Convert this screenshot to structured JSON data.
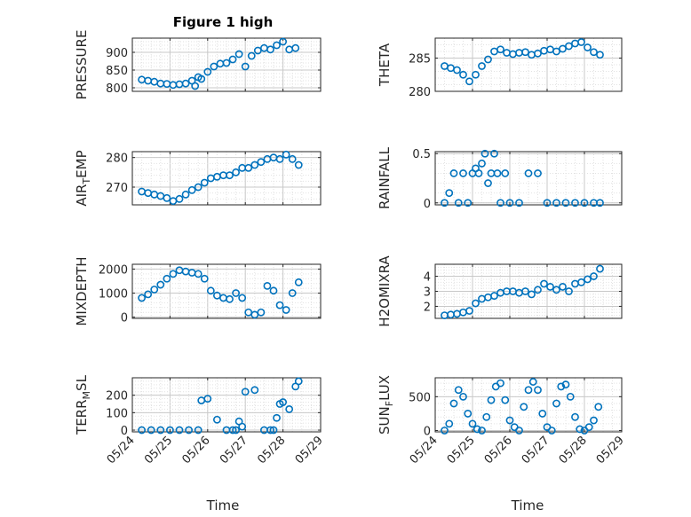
{
  "figure": {
    "title": "Figure 1 high",
    "xlabel": "Time",
    "marker_color": "#0072BD",
    "date_ticks": [
      "05/24",
      "05/25",
      "05/26",
      "05/27",
      "05/28",
      "05/29"
    ]
  },
  "chart_data": [
    {
      "type": "scatter",
      "ylabel": "PRESSURE",
      "ylim": [
        790,
        940
      ],
      "yticks": [
        800,
        850,
        900
      ],
      "grid": true,
      "x": [
        "05/24 06:00",
        "05/24 10:00",
        "05/24 14:00",
        "05/24 18:00",
        "05/24 22:00",
        "05/25 02:00",
        "05/25 06:00",
        "05/25 10:00",
        "05/25 14:00",
        "05/25 16:00",
        "05/25 18:00",
        "05/25 20:00",
        "05/26 00:00",
        "05/26 04:00",
        "05/26 08:00",
        "05/26 12:00",
        "05/26 16:00",
        "05/26 20:00",
        "05/27 00:00",
        "05/27 04:00",
        "05/27 08:00",
        "05/27 12:00",
        "05/27 16:00",
        "05/27 20:00",
        "05/28 00:00",
        "05/28 04:00",
        "05/28 08:00"
      ],
      "values": [
        823,
        820,
        817,
        812,
        811,
        808,
        810,
        812,
        820,
        805,
        830,
        825,
        845,
        860,
        868,
        870,
        880,
        895,
        860,
        890,
        905,
        912,
        908,
        920,
        930,
        908,
        912
      ]
    },
    {
      "type": "scatter",
      "ylabel": "THETA",
      "ylim": [
        280,
        288
      ],
      "yticks": [
        280,
        285
      ],
      "grid": true,
      "x": [
        "05/24 06:00",
        "05/24 10:00",
        "05/24 14:00",
        "05/24 18:00",
        "05/24 22:00",
        "05/25 02:00",
        "05/25 06:00",
        "05/25 10:00",
        "05/25 14:00",
        "05/25 18:00",
        "05/25 22:00",
        "05/26 02:00",
        "05/26 06:00",
        "05/26 10:00",
        "05/26 14:00",
        "05/26 18:00",
        "05/26 22:00",
        "05/27 02:00",
        "05/27 06:00",
        "05/27 10:00",
        "05/27 14:00",
        "05/27 18:00",
        "05/27 22:00",
        "05/28 02:00",
        "05/28 06:00",
        "05/28 10:00"
      ],
      "values": [
        283.8,
        283.5,
        283.2,
        282.5,
        281.5,
        282.5,
        283.8,
        284.8,
        286.0,
        286.3,
        285.8,
        285.6,
        285.8,
        285.9,
        285.5,
        285.7,
        286.1,
        286.3,
        286.0,
        286.4,
        286.8,
        287.2,
        287.4,
        286.6,
        285.9,
        285.5
      ]
    },
    {
      "type": "scatter",
      "ylabel": "AIR_TEMP",
      "ylim": [
        264,
        282
      ],
      "yticks": [
        270,
        280
      ],
      "grid": true,
      "x": [
        "05/24 06:00",
        "05/24 10:00",
        "05/24 14:00",
        "05/24 18:00",
        "05/24 22:00",
        "05/25 02:00",
        "05/25 06:00",
        "05/25 10:00",
        "05/25 14:00",
        "05/25 18:00",
        "05/25 22:00",
        "05/26 02:00",
        "05/26 06:00",
        "05/26 10:00",
        "05/26 14:00",
        "05/26 18:00",
        "05/26 22:00",
        "05/27 02:00",
        "05/27 06:00",
        "05/27 10:00",
        "05/27 14:00",
        "05/27 18:00",
        "05/27 22:00",
        "05/28 02:00",
        "05/28 06:00",
        "05/28 10:00"
      ],
      "values": [
        268.5,
        268,
        267.5,
        267,
        266.3,
        265.3,
        266,
        267.5,
        269,
        270,
        271.5,
        273,
        273.5,
        274,
        274,
        275,
        276.5,
        276.5,
        277.5,
        278.5,
        279.5,
        280,
        279.5,
        281,
        279.5,
        277.5
      ]
    },
    {
      "type": "scatter",
      "ylabel": "RAINFALL",
      "ylim": [
        -0.02,
        0.52
      ],
      "yticks": [
        0,
        0.5
      ],
      "grid": true,
      "x": [
        "05/24 06:00",
        "05/24 09:00",
        "05/24 12:00",
        "05/24 15:00",
        "05/24 18:00",
        "05/24 21:00",
        "05/25 00:00",
        "05/25 02:00",
        "05/25 04:00",
        "05/25 06:00",
        "05/25 08:00",
        "05/25 10:00",
        "05/25 12:00",
        "05/25 14:00",
        "05/25 16:00",
        "05/25 18:00",
        "05/25 21:00",
        "05/26 00:00",
        "05/26 06:00",
        "05/26 12:00",
        "05/26 18:00",
        "05/27 00:00",
        "05/27 06:00",
        "05/27 12:00",
        "05/27 18:00",
        "05/28 00:00",
        "05/28 06:00",
        "05/28 10:00"
      ],
      "values": [
        0,
        0.1,
        0.3,
        0,
        0.3,
        0,
        0.3,
        0.35,
        0.3,
        0.4,
        0.5,
        0.2,
        0.3,
        0.5,
        0.3,
        0,
        0.3,
        0,
        0,
        0.3,
        0.3,
        0,
        0,
        0,
        0,
        0,
        0,
        0
      ]
    },
    {
      "type": "scatter",
      "ylabel": "MIXDEPTH",
      "ylim": [
        -50,
        2200
      ],
      "yticks": [
        0,
        1000,
        2000
      ],
      "grid": true,
      "x": [
        "05/24 06:00",
        "05/24 10:00",
        "05/24 14:00",
        "05/24 18:00",
        "05/24 22:00",
        "05/25 02:00",
        "05/25 06:00",
        "05/25 10:00",
        "05/25 14:00",
        "05/25 18:00",
        "05/25 22:00",
        "05/26 02:00",
        "05/26 06:00",
        "05/26 10:00",
        "05/26 14:00",
        "05/26 18:00",
        "05/26 22:00",
        "05/27 02:00",
        "05/27 06:00",
        "05/27 10:00",
        "05/27 14:00",
        "05/27 18:00",
        "05/27 22:00",
        "05/28 02:00",
        "05/28 06:00",
        "05/28 10:00"
      ],
      "values": [
        800,
        950,
        1150,
        1350,
        1600,
        1800,
        1950,
        1900,
        1850,
        1800,
        1600,
        1100,
        900,
        800,
        750,
        1000,
        800,
        200,
        100,
        200,
        1300,
        1100,
        500,
        300,
        1000,
        1450
      ]
    },
    {
      "type": "scatter",
      "ylabel": "H2OMIXRA",
      "ylim": [
        1.2,
        4.8
      ],
      "yticks": [
        2,
        3,
        4
      ],
      "grid": true,
      "x": [
        "05/24 06:00",
        "05/24 10:00",
        "05/24 14:00",
        "05/24 18:00",
        "05/24 22:00",
        "05/25 02:00",
        "05/25 06:00",
        "05/25 10:00",
        "05/25 14:00",
        "05/25 18:00",
        "05/25 22:00",
        "05/26 02:00",
        "05/26 06:00",
        "05/26 10:00",
        "05/26 14:00",
        "05/26 18:00",
        "05/26 22:00",
        "05/27 02:00",
        "05/27 06:00",
        "05/27 10:00",
        "05/27 14:00",
        "05/27 18:00",
        "05/27 22:00",
        "05/28 02:00",
        "05/28 06:00",
        "05/28 10:00"
      ],
      "values": [
        1.4,
        1.45,
        1.5,
        1.6,
        1.7,
        2.2,
        2.5,
        2.6,
        2.7,
        2.9,
        3.0,
        3.0,
        2.9,
        3.0,
        2.8,
        3.1,
        3.5,
        3.3,
        3.1,
        3.3,
        3.0,
        3.5,
        3.6,
        3.8,
        4.0,
        4.5
      ]
    },
    {
      "type": "scatter",
      "ylabel": "TERR_MSL",
      "ylim": [
        -10,
        300
      ],
      "yticks": [
        0,
        100,
        200
      ],
      "grid": true,
      "x": [
        "05/24 06:00",
        "05/24 12:00",
        "05/24 18:00",
        "05/25 00:00",
        "05/25 06:00",
        "05/25 12:00",
        "05/25 18:00",
        "05/25 20:00",
        "05/26 00:00",
        "05/26 06:00",
        "05/26 12:00",
        "05/26 16:00",
        "05/26 18:00",
        "05/26 20:00",
        "05/26 22:00",
        "05/27 00:00",
        "05/27 06:00",
        "05/27 12:00",
        "05/27 16:00",
        "05/27 18:00",
        "05/27 20:00",
        "05/27 22:00",
        "05/28 00:00",
        "05/28 04:00",
        "05/28 08:00",
        "05/28 10:00"
      ],
      "values": [
        0,
        0,
        0,
        0,
        0,
        0,
        0,
        170,
        180,
        60,
        0,
        0,
        0,
        50,
        20,
        220,
        230,
        0,
        0,
        0,
        70,
        150,
        160,
        120,
        250,
        280
      ]
    },
    {
      "type": "scatter",
      "ylabel": "SUN_FLUX",
      "ylim": [
        -20,
        780
      ],
      "yticks": [
        0,
        500
      ],
      "grid": true,
      "x": [
        "05/24 06:00",
        "05/24 09:00",
        "05/24 12:00",
        "05/24 15:00",
        "05/24 18:00",
        "05/24 21:00",
        "05/25 00:00",
        "05/25 03:00",
        "05/25 06:00",
        "05/25 09:00",
        "05/25 12:00",
        "05/25 15:00",
        "05/25 18:00",
        "05/25 21:00",
        "05/26 00:00",
        "05/26 03:00",
        "05/26 06:00",
        "05/26 09:00",
        "05/26 12:00",
        "05/26 15:00",
        "05/26 18:00",
        "05/26 21:00",
        "05/27 00:00",
        "05/27 03:00",
        "05/27 06:00",
        "05/27 09:00",
        "05/27 12:00",
        "05/27 15:00",
        "05/27 18:00",
        "05/27 21:00",
        "05/28 00:00",
        "05/28 03:00",
        "05/28 06:00",
        "05/28 09:00"
      ],
      "values": [
        0,
        100,
        400,
        600,
        500,
        250,
        100,
        20,
        0,
        200,
        450,
        650,
        700,
        450,
        150,
        50,
        0,
        350,
        600,
        720,
        600,
        250,
        50,
        0,
        400,
        650,
        680,
        500,
        200,
        20,
        0,
        50,
        150,
        350
      ]
    }
  ]
}
